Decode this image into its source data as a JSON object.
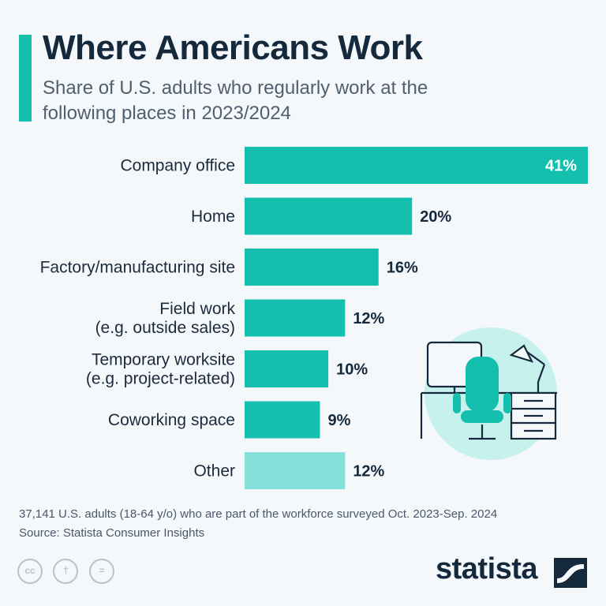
{
  "header": {
    "title": "Where Americans Work",
    "subtitle": "Share of U.S. adults who regularly work at the following places in 2023/2024"
  },
  "chart_data": {
    "type": "bar",
    "orientation": "horizontal",
    "categories": [
      [
        "Company office"
      ],
      [
        "Home"
      ],
      [
        "Factory/manufacturing site"
      ],
      [
        "Field work",
        "(e.g. outside sales)"
      ],
      [
        "Temporary worksite",
        "(e.g. project-related)"
      ],
      [
        "Coworking space"
      ],
      [
        "Other"
      ]
    ],
    "values": [
      41,
      20,
      16,
      12,
      10,
      9,
      12
    ],
    "value_labels": [
      "41%",
      "20%",
      "16%",
      "12%",
      "10%",
      "9%",
      "12%"
    ],
    "unit": "%",
    "xlim": [
      0,
      41
    ],
    "grid": false,
    "legend": "none",
    "colors": {
      "bar": "#15bfae",
      "bar_other": "#84e0d8",
      "label_inside": "#ffffff",
      "label_outside": "#15293d"
    }
  },
  "footer": {
    "note": "37,141 U.S. adults (18-64 y/o) who are part of the workforce surveyed Oct. 2023-Sep. 2024",
    "source": "Source: Statista Consumer Insights",
    "license_icons": [
      "cc-icon",
      "attribution-icon",
      "no-derivatives-icon"
    ],
    "license_glyphs": [
      "cc",
      "†",
      "="
    ],
    "brand": "statista"
  },
  "colors": {
    "accent": "#15bfae",
    "title": "#15293d",
    "background": "#f5f8fb"
  }
}
